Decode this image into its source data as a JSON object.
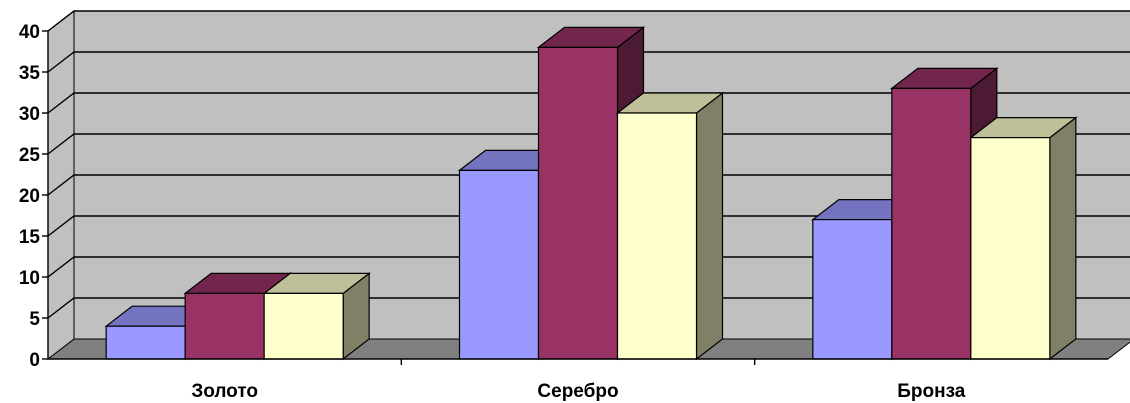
{
  "chart_data": {
    "type": "bar",
    "style": "3d-clustered-column",
    "categories": [
      "Золото",
      "Серебро",
      "Бронза"
    ],
    "series": [
      {
        "values": [
          4,
          23,
          17
        ],
        "front": "#9999ff",
        "top": "#7373bf",
        "side": "#4d4d80"
      },
      {
        "values": [
          8,
          38,
          33
        ],
        "front": "#993366",
        "top": "#73264d",
        "side": "#4d1a33"
      },
      {
        "values": [
          8,
          30,
          27
        ],
        "front": "#ffffcc",
        "top": "#bfbf99",
        "side": "#808066"
      }
    ],
    "yticks": [
      "0",
      "5",
      "10",
      "15",
      "20",
      "25",
      "30",
      "35",
      "40"
    ],
    "ylim": [
      0,
      40
    ],
    "grid": true,
    "wall_color": "#c0c0c0",
    "floor_color": "#808080",
    "title": "",
    "xlabel": "",
    "ylabel": ""
  }
}
